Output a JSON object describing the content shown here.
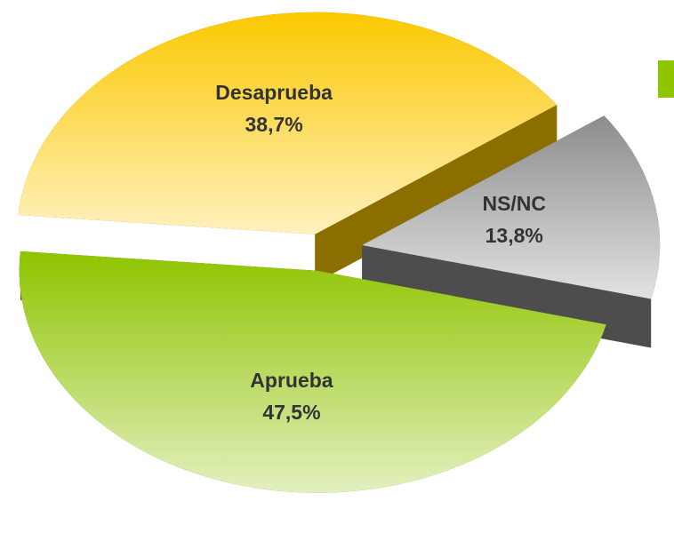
{
  "chart_data": {
    "type": "pie",
    "categories": [
      "Desaprueba",
      "NS/NC",
      "Aprueba"
    ],
    "values": [
      38.7,
      13.8,
      47.5
    ],
    "value_labels": [
      "38,7%",
      "13,8%",
      "47,5%"
    ],
    "colors": [
      "#fcc800",
      "#8c8c8c",
      "#8fc400"
    ]
  }
}
